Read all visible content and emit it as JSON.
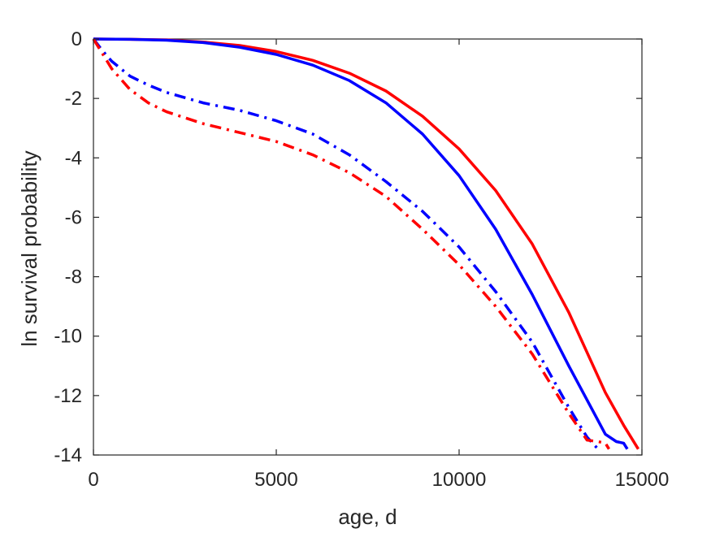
{
  "chart_data": {
    "type": "line",
    "title": "",
    "xlabel": "age, d",
    "ylabel": "ln survival probability",
    "xlim": [
      0,
      15000
    ],
    "ylim": [
      -14,
      0
    ],
    "xticks": [
      0,
      5000,
      10000,
      15000
    ],
    "yticks": [
      0,
      -2,
      -4,
      -6,
      -8,
      -10,
      -12,
      -14
    ],
    "xtick_labels": [
      "0",
      "5000",
      "10000",
      "15000"
    ],
    "ytick_labels": [
      "0",
      "-2",
      "-4",
      "-6",
      "-8",
      "-10",
      "-12",
      "-14"
    ],
    "grid": false,
    "legend": "none",
    "series": [
      {
        "color": "#ff0000",
        "style": "solid",
        "x": [
          0,
          1000,
          2000,
          3000,
          4000,
          5000,
          6000,
          7000,
          8000,
          9000,
          10000,
          11000,
          12000,
          13000,
          14000,
          14500,
          14900
        ],
        "y": [
          0,
          -0.01,
          -0.03,
          -0.1,
          -0.22,
          -0.42,
          -0.72,
          -1.15,
          -1.75,
          -2.6,
          -3.7,
          -5.1,
          -6.9,
          -9.2,
          -11.9,
          -13.0,
          -13.8
        ]
      },
      {
        "color": "#0000ff",
        "style": "solid",
        "x": [
          0,
          1000,
          2000,
          3000,
          4000,
          5000,
          6000,
          7000,
          8000,
          9000,
          10000,
          11000,
          12000,
          13000,
          14000,
          14300,
          14500,
          14600
        ],
        "y": [
          0,
          -0.01,
          -0.04,
          -0.12,
          -0.28,
          -0.52,
          -0.88,
          -1.4,
          -2.15,
          -3.2,
          -4.6,
          -6.4,
          -8.6,
          -11.0,
          -13.3,
          -13.55,
          -13.6,
          -13.8
        ]
      },
      {
        "color": "#0000ff",
        "style": "dashdot",
        "x": [
          0,
          250,
          500,
          1000,
          1500,
          2000,
          3000,
          4000,
          5000,
          6000,
          7000,
          8000,
          9000,
          10000,
          11000,
          12000,
          12500,
          13000,
          13500,
          13800
        ],
        "y": [
          0,
          -0.4,
          -0.75,
          -1.25,
          -1.55,
          -1.8,
          -2.15,
          -2.4,
          -2.75,
          -3.2,
          -3.9,
          -4.8,
          -5.8,
          -7.0,
          -8.5,
          -10.2,
          -11.3,
          -12.4,
          -13.4,
          -13.8
        ]
      },
      {
        "color": "#ff0000",
        "style": "dashdot",
        "x": [
          0,
          250,
          500,
          1000,
          1500,
          2000,
          3000,
          4000,
          5000,
          6000,
          7000,
          8000,
          9000,
          10000,
          11000,
          12000,
          12500,
          13000,
          13500,
          13800,
          14000,
          14100
        ],
        "y": [
          0,
          -0.5,
          -1.0,
          -1.7,
          -2.15,
          -2.45,
          -2.85,
          -3.15,
          -3.45,
          -3.9,
          -4.5,
          -5.3,
          -6.4,
          -7.6,
          -9.0,
          -10.6,
          -11.6,
          -12.6,
          -13.5,
          -13.55,
          -13.6,
          -13.8
        ]
      }
    ]
  }
}
